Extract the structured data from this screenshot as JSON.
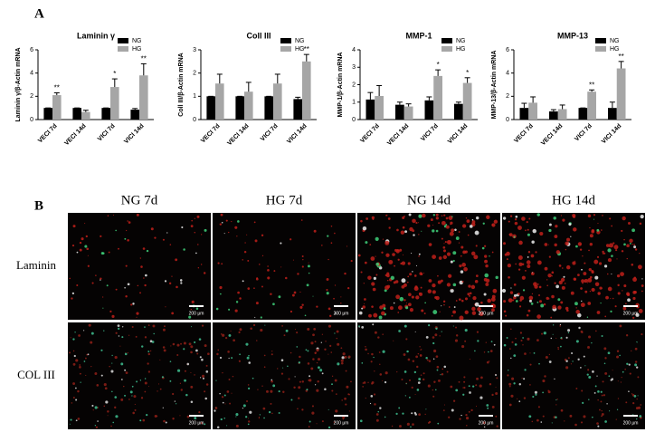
{
  "panel_a_label": "A",
  "panel_b_label": "B",
  "chart_data": [
    {
      "type": "bar",
      "title": "Laminin γ",
      "y_label": "Laminin γ/β-Actin mRNA",
      "categories": [
        "VECI 7d",
        "VECI 14d",
        "VICI 7d",
        "VICI 14d"
      ],
      "series": [
        {
          "name": "NG",
          "color": "#000000",
          "values": [
            1,
            1,
            1,
            0.85
          ],
          "errors": [
            0,
            0,
            0,
            0.1
          ],
          "annotations": [
            null,
            null,
            null,
            null
          ]
        },
        {
          "name": "HG",
          "color": "#a6a6a6",
          "values": [
            2.1,
            0.65,
            2.8,
            3.8
          ],
          "errors": [
            0.2,
            0.15,
            0.7,
            1.0
          ],
          "annotations": [
            "**",
            null,
            "*",
            "**"
          ]
        }
      ],
      "ylim": [
        0,
        6
      ],
      "yticks": [
        0,
        2,
        4,
        6
      ]
    },
    {
      "type": "bar",
      "title": "Coll III",
      "y_label": "Coll III/β-Actin mRNA",
      "categories": [
        "VECI 7d",
        "VECI 14d",
        "VICI 7d",
        "VICI 14d"
      ],
      "series": [
        {
          "name": "NG",
          "color": "#000000",
          "values": [
            1,
            1,
            1,
            0.88
          ],
          "errors": [
            0,
            0,
            0,
            0.08
          ],
          "annotations": [
            null,
            null,
            null,
            null
          ]
        },
        {
          "name": "HG",
          "color": "#a6a6a6",
          "values": [
            1.55,
            1.2,
            1.55,
            2.5
          ],
          "errors": [
            0.4,
            0.4,
            0.4,
            0.3
          ],
          "annotations": [
            null,
            null,
            null,
            "**"
          ]
        }
      ],
      "ylim": [
        0,
        3
      ],
      "yticks": [
        0,
        1,
        2,
        3
      ]
    },
    {
      "type": "bar",
      "title": "MMP-1",
      "y_label": "MMP-1/β-Actin mRNA",
      "categories": [
        "VECI 7d",
        "VECI 14d",
        "VICI 7d",
        "VICI 14d"
      ],
      "series": [
        {
          "name": "NG",
          "color": "#000000",
          "values": [
            1.15,
            0.85,
            1.1,
            0.9
          ],
          "errors": [
            0.4,
            0.15,
            0.2,
            0.1
          ],
          "annotations": [
            null,
            null,
            null,
            null
          ]
        },
        {
          "name": "HG",
          "color": "#a6a6a6",
          "values": [
            1.35,
            0.75,
            2.5,
            2.1
          ],
          "errors": [
            0.6,
            0.15,
            0.35,
            0.3
          ],
          "annotations": [
            null,
            null,
            "*",
            "*"
          ]
        }
      ],
      "ylim": [
        0,
        4
      ],
      "yticks": [
        0,
        1,
        2,
        3,
        4
      ]
    },
    {
      "type": "bar",
      "title": "MMP-13",
      "y_label": "MMP-13/β-Actin mRNA",
      "categories": [
        "VECI 7d",
        "VECI 14d",
        "VICI 7d",
        "VICI 14d"
      ],
      "series": [
        {
          "name": "NG",
          "color": "#000000",
          "values": [
            1,
            0.7,
            1,
            1
          ],
          "errors": [
            0.4,
            0.15,
            0,
            0.5
          ],
          "annotations": [
            null,
            null,
            null,
            null
          ]
        },
        {
          "name": "HG",
          "color": "#a6a6a6",
          "values": [
            1.45,
            0.9,
            2.4,
            4.4
          ],
          "errors": [
            0.5,
            0.35,
            0.15,
            0.6
          ],
          "annotations": [
            null,
            null,
            "**",
            "**"
          ]
        }
      ],
      "ylim": [
        0,
        6
      ],
      "yticks": [
        0,
        2,
        4,
        6
      ]
    }
  ],
  "images": {
    "columns": [
      "NG 7d",
      "HG 7d",
      "NG 14d",
      "HG 14d"
    ],
    "rows": [
      "Laminin",
      "COL III"
    ],
    "scale_bar": "200 μm"
  }
}
